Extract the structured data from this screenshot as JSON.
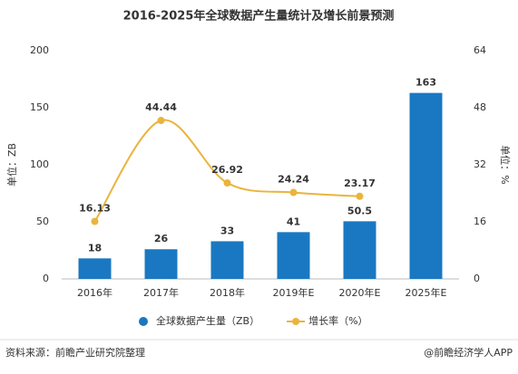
{
  "chart_data": {
    "type": "bar",
    "title": "2016-2025年全球数据产生量统计及增长前景预测",
    "categories": [
      "2016年",
      "2017年",
      "2018年",
      "2019年E",
      "2020年E",
      "2025年E"
    ],
    "series": [
      {
        "name": "全球数据产生量（ZB）",
        "type": "bar",
        "color": "#1a78c2",
        "values": [
          18,
          26,
          33,
          41,
          50.5,
          163
        ]
      },
      {
        "name": "增长率（%）",
        "type": "line",
        "axis": "y2",
        "color": "#eab43d",
        "values": [
          16.13,
          44.44,
          26.92,
          24.24,
          23.17,
          null
        ]
      }
    ],
    "ylabel": "单位：ZB",
    "y2label": "单位：%",
    "ylim": [
      0,
      200
    ],
    "yticks": [
      0,
      50,
      100,
      150,
      200
    ],
    "y2lim": [
      0,
      64
    ],
    "y2ticks": [
      0,
      16,
      32,
      48,
      64
    ],
    "source": "资料来源：前瞻产业研究院整理",
    "credit": "@前瞻经济学人APP"
  }
}
